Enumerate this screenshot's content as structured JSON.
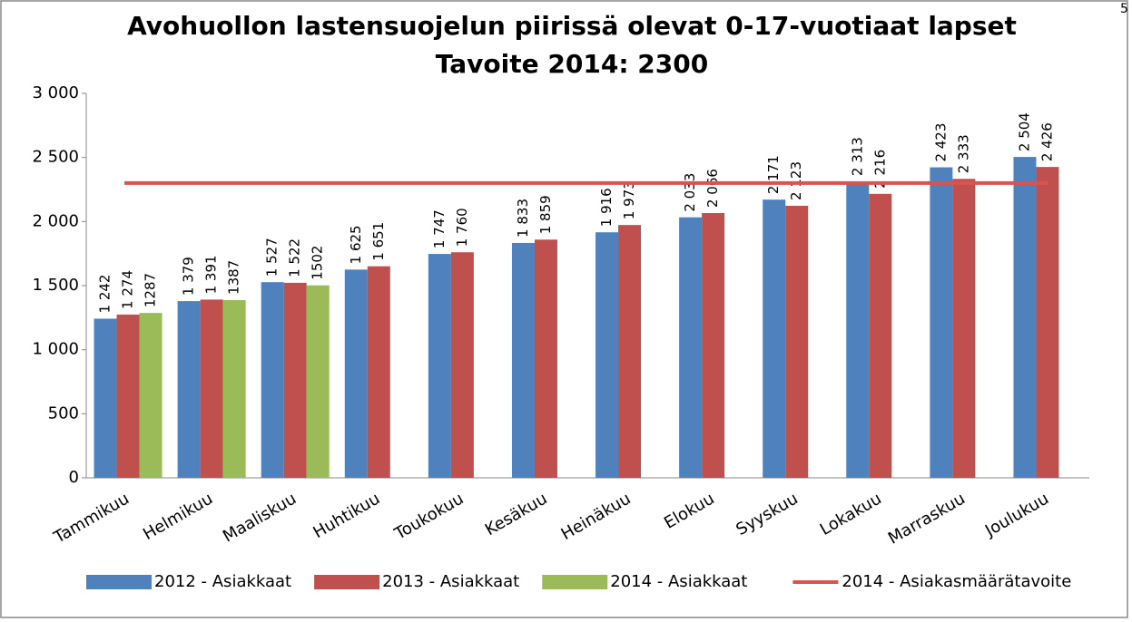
{
  "page_number": "5",
  "chart_data": {
    "type": "bar",
    "title": "Avohuollon lastensuojelun piirissä olevat 0-17-vuotiaat lapset",
    "subtitle": "Tavoite 2014: 2300",
    "categories": [
      "Tammikuu",
      "Helmikuu",
      "Maaliskuu",
      "Huhtikuu",
      "Toukokuu",
      "Kesäkuu",
      "Heinäkuu",
      "Elokuu",
      "Syyskuu",
      "Lokakuu",
      "Marraskuu",
      "Joulukuu"
    ],
    "series": [
      {
        "name": "2012 - Asiakkaat",
        "color": "#4f81bd",
        "values": [
          1242,
          1379,
          1527,
          1625,
          1747,
          1833,
          1916,
          2033,
          2171,
          2313,
          2423,
          2504
        ],
        "value_labels": [
          "1 242",
          "1 379",
          "1 527",
          "1 625",
          "1 747",
          "1 833",
          "1 916",
          "2 033",
          "2 171",
          "2 313",
          "2 423",
          "2 504"
        ]
      },
      {
        "name": "2013 - Asiakkaat",
        "color": "#c0504d",
        "values": [
          1274,
          1391,
          1522,
          1651,
          1760,
          1859,
          1973,
          2066,
          2123,
          2216,
          2333,
          2426
        ],
        "value_labels": [
          "1 274",
          "1 391",
          "1 522",
          "1 651",
          "1 760",
          "1 859",
          "1 973",
          "2 066",
          "2 123",
          "2 216",
          "2 333",
          "2 426"
        ]
      },
      {
        "name": "2014 - Asiakkaat",
        "color": "#9bbb59",
        "values": [
          1287,
          1387,
          1502,
          null,
          null,
          null,
          null,
          null,
          null,
          null,
          null,
          null
        ]
      },
      {
        "name": "2014 - Asiakasmäärätavoite",
        "color": "#d9534f",
        "type": "line",
        "values": [
          2300,
          2300,
          2300,
          2300,
          2300,
          2300,
          2300,
          2300,
          2300,
          2300,
          2300,
          2300
        ]
      }
    ],
    "ylim": [
      0,
      3000
    ],
    "yticks": [
      0,
      500,
      {
        "value": 1000,
        "label": "1 000"
      },
      {
        "value": 1500,
        "label": "1 500"
      },
      {
        "value": 2000,
        "label": "2 000"
      },
      {
        "value": 2500,
        "label": "2 500"
      },
      {
        "value": 3000,
        "label": "3 000"
      }
    ],
    "legend": "bottom"
  }
}
